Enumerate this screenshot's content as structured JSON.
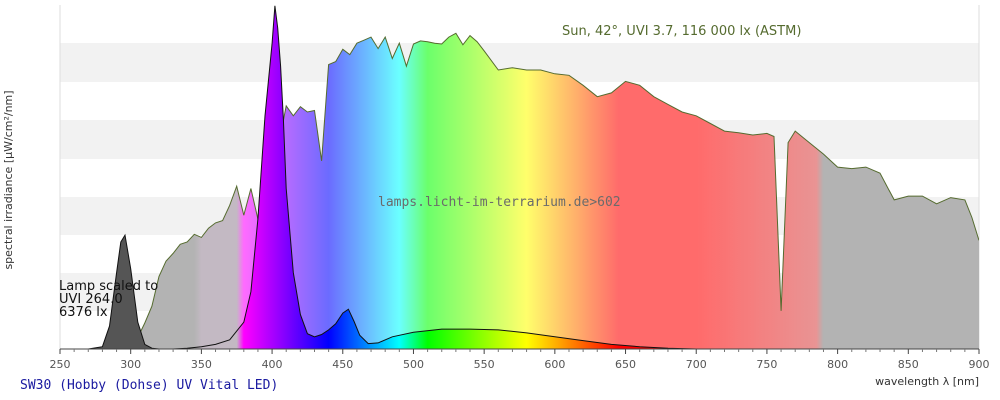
{
  "chart_data": {
    "type": "area",
    "xlabel": "wavelength λ [nm]",
    "ylabel": "spectral irradiance [µW/cm²/nm]",
    "xlim": [
      250,
      900
    ],
    "xticks": [
      250,
      300,
      350,
      400,
      450,
      500,
      550,
      600,
      650,
      700,
      750,
      800,
      850,
      900
    ],
    "grid": "horizontal bands",
    "sun_label": "Sun, 42°, UVI 3.7, 116 000 lx (ASTM)",
    "lamp_label_lines": [
      "Lamp scaled to",
      "UVI 264.0",
      "6376 lx"
    ],
    "watermark": "lamps.licht-im-terrarium.de>602",
    "footer": "SW30 (Hobby (Dohse) UV Vital LED)",
    "colors": {
      "sun_line": "#556b2f",
      "lamp_line": "#111111",
      "background_band": "#f2f2f2",
      "grey_fill": "#b3b3b3"
    },
    "series": [
      {
        "name": "Sun, 42°, UVI 3.7, 116 000 lx (ASTM)",
        "x": [
          295,
          300,
          305,
          310,
          315,
          320,
          325,
          330,
          335,
          340,
          345,
          350,
          355,
          360,
          365,
          370,
          375,
          380,
          385,
          390,
          395,
          400,
          405,
          410,
          415,
          420,
          425,
          430,
          435,
          440,
          445,
          450,
          455,
          460,
          465,
          470,
          475,
          480,
          485,
          490,
          495,
          500,
          505,
          510,
          515,
          520,
          525,
          530,
          535,
          540,
          545,
          550,
          560,
          570,
          580,
          590,
          600,
          610,
          620,
          630,
          640,
          650,
          660,
          670,
          680,
          690,
          700,
          710,
          720,
          730,
          740,
          750,
          755,
          760,
          765,
          770,
          780,
          790,
          800,
          810,
          820,
          830,
          840,
          850,
          860,
          870,
          880,
          890,
          895,
          900
        ],
        "y": [
          0.0,
          0.3,
          1.5,
          3.4,
          5.6,
          9.5,
          11.5,
          12.5,
          13.7,
          14.0,
          15.0,
          14.6,
          15.8,
          16.5,
          16.8,
          18.8,
          21.3,
          17.5,
          21.0,
          17.0,
          21.0,
          28.3,
          27.0,
          31.8,
          30.5,
          31.7,
          31.0,
          31.2,
          24.6,
          37.2,
          37.6,
          39.2,
          38.5,
          40.0,
          40.4,
          40.8,
          39.3,
          40.8,
          38.0,
          40.0,
          37.0,
          39.9,
          40.3,
          40.2,
          40.0,
          39.9,
          40.8,
          41.3,
          39.8,
          41.0,
          40.2,
          39.0,
          36.5,
          36.8,
          36.5,
          36.5,
          36.0,
          35.8,
          34.5,
          33.0,
          33.5,
          35.0,
          34.5,
          33.0,
          32.0,
          31.0,
          30.5,
          29.5,
          28.5,
          28.3,
          28.0,
          28.2,
          27.8,
          5.0,
          27.0,
          28.5,
          27.0,
          25.5,
          23.8,
          23.6,
          23.8,
          23.0,
          19.5,
          20.0,
          20.0,
          19.0,
          19.8,
          19.5,
          17.2,
          14.2
        ]
      },
      {
        "name": "Lamp",
        "x": [
          270,
          280,
          285,
          290,
          293,
          296,
          300,
          305,
          310,
          315,
          320,
          330,
          340,
          350,
          360,
          370,
          380,
          385,
          390,
          395,
          400,
          402,
          404,
          406,
          408,
          410,
          415,
          420,
          425,
          430,
          435,
          440,
          445,
          450,
          454,
          458,
          462,
          468,
          475,
          485,
          500,
          520,
          540,
          560,
          580,
          600,
          620,
          640,
          660,
          680,
          700,
          720,
          750,
          780,
          820,
          860,
          900
        ],
        "y": [
          0.0,
          0.3,
          3.0,
          10.0,
          14.0,
          14.9,
          10.5,
          3.5,
          0.6,
          0.1,
          0.0,
          0.0,
          0.1,
          0.3,
          0.6,
          1.2,
          3.5,
          7.5,
          17.0,
          30.5,
          40.0,
          44.9,
          42.0,
          37.0,
          30.0,
          21.0,
          10.0,
          4.5,
          2.0,
          1.6,
          1.9,
          2.5,
          3.3,
          4.7,
          5.2,
          3.6,
          1.8,
          0.7,
          0.8,
          1.6,
          2.2,
          2.6,
          2.6,
          2.5,
          2.1,
          1.6,
          1.1,
          0.6,
          0.3,
          0.1,
          0.0,
          0.0,
          0.0,
          0.0,
          0.0,
          0.0,
          0.0
        ]
      }
    ]
  }
}
